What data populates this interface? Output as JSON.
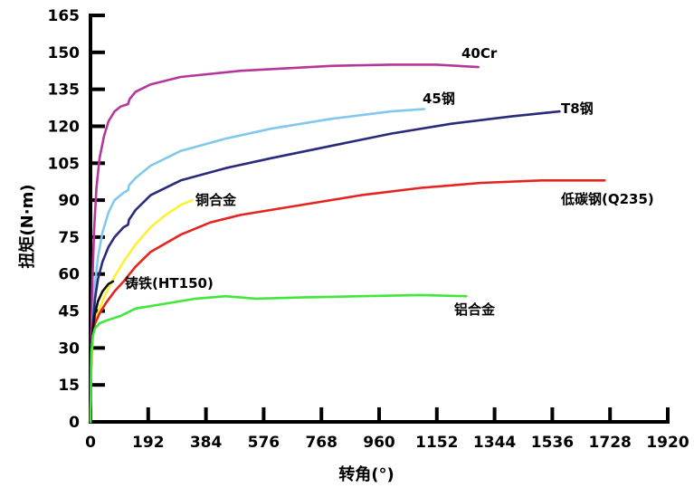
{
  "chart_data": {
    "type": "line",
    "xlabel": "转角(°)",
    "ylabel": "扭矩(N·m)",
    "xlim": [
      0,
      1920
    ],
    "ylim": [
      0,
      165
    ],
    "xticks": [
      0,
      192,
      384,
      576,
      768,
      960,
      1152,
      1344,
      1536,
      1728,
      1920
    ],
    "yticks": [
      0,
      15,
      30,
      45,
      60,
      75,
      90,
      105,
      120,
      135,
      150,
      165
    ],
    "grid": false,
    "legend": "none",
    "series": [
      {
        "name": "40Cr",
        "color": "#b5379b",
        "points": [
          [
            0,
            0
          ],
          [
            2,
            30
          ],
          [
            6,
            55
          ],
          [
            12,
            78
          ],
          [
            20,
            95
          ],
          [
            30,
            107
          ],
          [
            45,
            116
          ],
          [
            60,
            122
          ],
          [
            80,
            126
          ],
          [
            100,
            128
          ],
          [
            125,
            129
          ],
          [
            130,
            131
          ],
          [
            150,
            134
          ],
          [
            200,
            137
          ],
          [
            300,
            140
          ],
          [
            500,
            142.5
          ],
          [
            800,
            144.5
          ],
          [
            1000,
            145
          ],
          [
            1150,
            145
          ],
          [
            1290,
            144
          ]
        ]
      },
      {
        "name": "45钢",
        "color": "#82c8ee",
        "points": [
          [
            0,
            0
          ],
          [
            3,
            25
          ],
          [
            8,
            42
          ],
          [
            15,
            56
          ],
          [
            25,
            67
          ],
          [
            40,
            77
          ],
          [
            60,
            85
          ],
          [
            80,
            90
          ],
          [
            110,
            93
          ],
          [
            125,
            94
          ],
          [
            128,
            96
          ],
          [
            150,
            99
          ],
          [
            200,
            104
          ],
          [
            300,
            110
          ],
          [
            450,
            115
          ],
          [
            600,
            119
          ],
          [
            800,
            123
          ],
          [
            1000,
            126
          ],
          [
            1110,
            127
          ]
        ]
      },
      {
        "name": "T8钢",
        "color": "#2a2a7c",
        "points": [
          [
            0,
            0
          ],
          [
            3,
            28
          ],
          [
            8,
            40
          ],
          [
            15,
            50
          ],
          [
            25,
            58
          ],
          [
            40,
            65
          ],
          [
            60,
            71
          ],
          [
            80,
            75
          ],
          [
            110,
            79
          ],
          [
            125,
            80
          ],
          [
            128,
            82
          ],
          [
            150,
            86
          ],
          [
            200,
            92
          ],
          [
            300,
            98
          ],
          [
            450,
            103
          ],
          [
            600,
            107
          ],
          [
            800,
            112
          ],
          [
            1000,
            117
          ],
          [
            1200,
            121
          ],
          [
            1400,
            124
          ],
          [
            1560,
            126
          ]
        ]
      },
      {
        "name": "铜合金",
        "color": "#fff033",
        "points": [
          [
            0,
            0
          ],
          [
            3,
            25
          ],
          [
            8,
            35
          ],
          [
            15,
            40
          ],
          [
            30,
            46
          ],
          [
            50,
            52
          ],
          [
            80,
            59
          ],
          [
            110,
            65
          ],
          [
            150,
            72
          ],
          [
            200,
            79
          ],
          [
            250,
            84
          ],
          [
            300,
            88
          ],
          [
            340,
            90
          ]
        ]
      },
      {
        "name": "低碳钢(Q235)",
        "color": "#e52420",
        "points": [
          [
            0,
            0
          ],
          [
            3,
            30
          ],
          [
            8,
            37
          ],
          [
            15,
            40
          ],
          [
            30,
            44
          ],
          [
            50,
            48
          ],
          [
            80,
            53
          ],
          [
            110,
            57
          ],
          [
            130,
            60
          ],
          [
            150,
            63
          ],
          [
            200,
            69
          ],
          [
            300,
            76
          ],
          [
            400,
            81
          ],
          [
            500,
            84
          ],
          [
            700,
            88
          ],
          [
            900,
            92
          ],
          [
            1100,
            95
          ],
          [
            1300,
            97
          ],
          [
            1500,
            98
          ],
          [
            1710,
            98
          ]
        ]
      },
      {
        "name": "铸铁(HT150)",
        "color": "#111111",
        "points": [
          [
            0,
            0
          ],
          [
            3,
            30
          ],
          [
            8,
            38
          ],
          [
            15,
            44
          ],
          [
            25,
            49
          ],
          [
            40,
            53
          ],
          [
            60,
            56
          ],
          [
            75,
            57
          ]
        ]
      },
      {
        "name": "铝合金",
        "color": "#3fe83a",
        "points": [
          [
            0,
            0
          ],
          [
            3,
            28
          ],
          [
            8,
            35
          ],
          [
            15,
            38
          ],
          [
            30,
            40
          ],
          [
            50,
            41
          ],
          [
            100,
            43
          ],
          [
            150,
            46
          ],
          [
            250,
            48
          ],
          [
            350,
            50
          ],
          [
            450,
            51
          ],
          [
            550,
            50
          ],
          [
            700,
            50.5
          ],
          [
            900,
            51
          ],
          [
            1100,
            51.5
          ],
          [
            1250,
            51
          ]
        ]
      }
    ]
  }
}
